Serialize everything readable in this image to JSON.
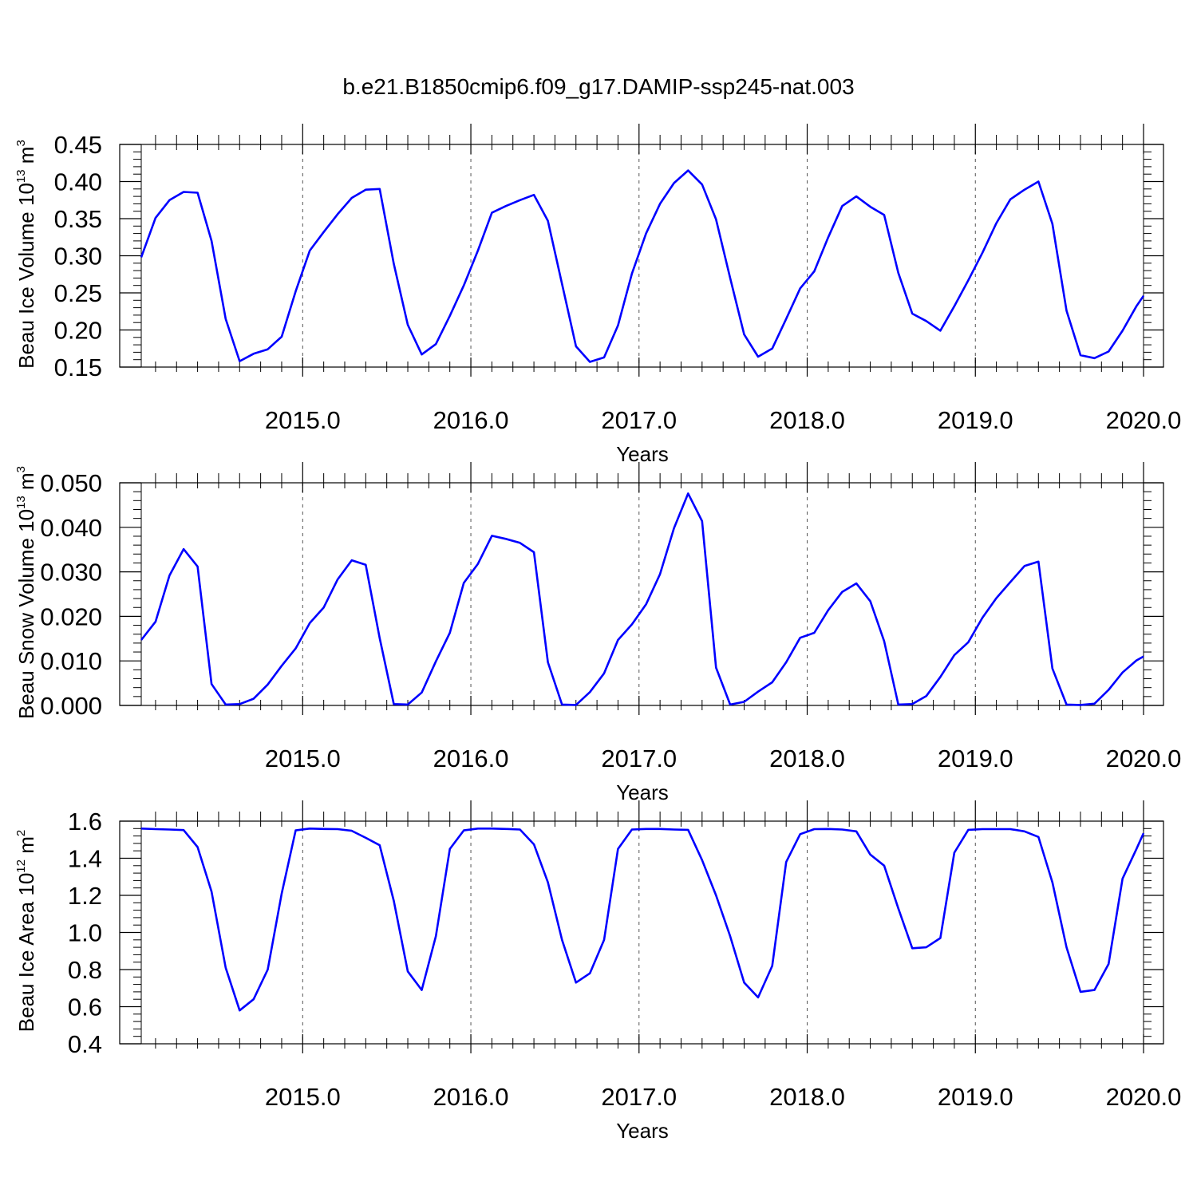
{
  "title": "b.e21.B1850cmip6.f09_g17.DAMIP-ssp245-nat.003",
  "line_color": "#0000ff",
  "chart_data": [
    {
      "type": "line",
      "title": "",
      "ylabel": "Beau Ice Volume",
      "ylabel_unit": "10",
      "ylabel_unit_exp": "13",
      "ylabel_unit_var": "m",
      "ylabel_unit_var_exp": "3",
      "xlabel": "Years",
      "xlim": [
        2014.04,
        2020.0
      ],
      "ylim": [
        0.15,
        0.45
      ],
      "yticks": [
        "0.15",
        "0.20",
        "0.25",
        "0.30",
        "0.35",
        "0.40",
        "0.45"
      ],
      "xticks": [
        "2015.0",
        "2016.0",
        "2017.0",
        "2018.0",
        "2019.0",
        "2020.0"
      ],
      "grid": "vertical-dashed",
      "series": [
        {
          "x": [
            2014.04,
            2014.125,
            2014.208,
            2014.292,
            2014.375,
            2014.458,
            2014.542,
            2014.625,
            2014.708,
            2014.792,
            2014.875,
            2014.958,
            2015.042,
            2015.125,
            2015.208,
            2015.292,
            2015.375,
            2015.458,
            2015.542,
            2015.625,
            2015.708,
            2015.792,
            2015.875,
            2015.958,
            2016.042,
            2016.125,
            2016.208,
            2016.292,
            2016.375,
            2016.458,
            2016.542,
            2016.625,
            2016.708,
            2016.792,
            2016.875,
            2016.958,
            2017.042,
            2017.125,
            2017.208,
            2017.292,
            2017.375,
            2017.458,
            2017.542,
            2017.625,
            2017.708,
            2017.792,
            2017.875,
            2017.958,
            2018.042,
            2018.125,
            2018.208,
            2018.292,
            2018.375,
            2018.458,
            2018.542,
            2018.625,
            2018.708,
            2018.792,
            2018.875,
            2018.958,
            2019.042,
            2019.125,
            2019.208,
            2019.292,
            2019.375,
            2019.458,
            2019.542,
            2019.625,
            2019.708,
            2019.792,
            2019.875,
            2019.958,
            2020.0
          ],
          "y": [
            0.298,
            0.351,
            0.375,
            0.386,
            0.385,
            0.32,
            0.215,
            0.158,
            0.168,
            0.174,
            0.191,
            0.252,
            0.307,
            0.332,
            0.356,
            0.378,
            0.389,
            0.39,
            0.289,
            0.207,
            0.167,
            0.181,
            0.219,
            0.26,
            0.307,
            0.358,
            0.367,
            0.375,
            0.382,
            0.347,
            0.262,
            0.178,
            0.157,
            0.163,
            0.206,
            0.276,
            0.33,
            0.37,
            0.398,
            0.415,
            0.396,
            0.349,
            0.27,
            0.194,
            0.164,
            0.175,
            0.215,
            0.256,
            0.279,
            0.325,
            0.367,
            0.38,
            0.366,
            0.355,
            0.277,
            0.222,
            0.212,
            0.199,
            0.232,
            0.267,
            0.304,
            0.344,
            0.376,
            0.389,
            0.4,
            0.343,
            0.226,
            0.166,
            0.162,
            0.171,
            0.199,
            0.232,
            0.246
          ]
        }
      ]
    },
    {
      "type": "line",
      "title": "",
      "ylabel": "Beau Snow Volume",
      "ylabel_unit": "10",
      "ylabel_unit_exp": "13",
      "ylabel_unit_var": "m",
      "ylabel_unit_var_exp": "3",
      "xlabel": "Years",
      "xlim": [
        2014.04,
        2020.0
      ],
      "ylim": [
        0.0,
        0.05
      ],
      "yticks": [
        "0.000",
        "0.010",
        "0.020",
        "0.030",
        "0.040",
        "0.050"
      ],
      "xticks": [
        "2015.0",
        "2016.0",
        "2017.0",
        "2018.0",
        "2019.0",
        "2020.0"
      ],
      "grid": "vertical-dashed",
      "series": [
        {
          "x": [
            2014.04,
            2014.125,
            2014.208,
            2014.292,
            2014.375,
            2014.458,
            2014.542,
            2014.625,
            2014.708,
            2014.792,
            2014.875,
            2014.958,
            2015.042,
            2015.125,
            2015.208,
            2015.292,
            2015.375,
            2015.458,
            2015.542,
            2015.625,
            2015.708,
            2015.792,
            2015.875,
            2015.958,
            2016.042,
            2016.125,
            2016.208,
            2016.292,
            2016.375,
            2016.458,
            2016.542,
            2016.625,
            2016.708,
            2016.792,
            2016.875,
            2016.958,
            2017.042,
            2017.125,
            2017.208,
            2017.292,
            2017.375,
            2017.458,
            2017.542,
            2017.625,
            2017.708,
            2017.792,
            2017.875,
            2017.958,
            2018.042,
            2018.125,
            2018.208,
            2018.292,
            2018.375,
            2018.458,
            2018.542,
            2018.625,
            2018.708,
            2018.792,
            2018.875,
            2018.958,
            2019.042,
            2019.125,
            2019.208,
            2019.292,
            2019.375,
            2019.458,
            2019.542,
            2019.625,
            2019.708,
            2019.792,
            2019.875,
            2019.958,
            2020.0
          ],
          "y": [
            0.0147,
            0.0188,
            0.0292,
            0.0351,
            0.0312,
            0.0048,
            0.0002,
            0.0003,
            0.0015,
            0.0047,
            0.0089,
            0.0128,
            0.0185,
            0.022,
            0.0283,
            0.0326,
            0.0316,
            0.0151,
            0.0003,
            0.0002,
            0.0029,
            0.0099,
            0.0163,
            0.0275,
            0.0318,
            0.0381,
            0.0374,
            0.0365,
            0.0344,
            0.0097,
            0.0002,
            0.0001,
            0.003,
            0.0072,
            0.0147,
            0.0182,
            0.0227,
            0.0295,
            0.0398,
            0.0476,
            0.0414,
            0.0085,
            0.0002,
            0.0008,
            0.0031,
            0.0052,
            0.0097,
            0.0152,
            0.0163,
            0.0214,
            0.0255,
            0.0274,
            0.0234,
            0.0144,
            0.0002,
            0.0003,
            0.0021,
            0.0064,
            0.0113,
            0.0142,
            0.0197,
            0.0241,
            0.0277,
            0.0313,
            0.0323,
            0.0083,
            0.0002,
            0.0001,
            0.0004,
            0.0035,
            0.0074,
            0.0101,
            0.011
          ]
        }
      ]
    },
    {
      "type": "line",
      "title": "",
      "ylabel": "Beau Ice Area",
      "ylabel_unit": "10",
      "ylabel_unit_exp": "12",
      "ylabel_unit_var": "m",
      "ylabel_unit_var_exp": "2",
      "xlabel": "Years",
      "xlim": [
        2014.04,
        2020.0
      ],
      "ylim": [
        0.4,
        1.6
      ],
      "yticks": [
        "0.4",
        "0.6",
        "0.8",
        "1.0",
        "1.2",
        "1.4",
        "1.6"
      ],
      "xticks": [
        "2015.0",
        "2016.0",
        "2017.0",
        "2018.0",
        "2019.0",
        "2020.0"
      ],
      "grid": "vertical-dashed",
      "series": [
        {
          "x": [
            2014.04,
            2014.125,
            2014.208,
            2014.292,
            2014.375,
            2014.458,
            2014.542,
            2014.625,
            2014.708,
            2014.792,
            2014.875,
            2014.958,
            2015.042,
            2015.125,
            2015.208,
            2015.292,
            2015.375,
            2015.458,
            2015.542,
            2015.625,
            2015.708,
            2015.792,
            2015.875,
            2015.958,
            2016.042,
            2016.125,
            2016.208,
            2016.292,
            2016.375,
            2016.458,
            2016.542,
            2016.625,
            2016.708,
            2016.792,
            2016.875,
            2016.958,
            2017.042,
            2017.125,
            2017.208,
            2017.292,
            2017.375,
            2017.458,
            2017.542,
            2017.625,
            2017.708,
            2017.792,
            2017.875,
            2017.958,
            2018.042,
            2018.125,
            2018.208,
            2018.292,
            2018.375,
            2018.458,
            2018.542,
            2018.625,
            2018.708,
            2018.792,
            2018.875,
            2018.958,
            2019.042,
            2019.125,
            2019.208,
            2019.292,
            2019.375,
            2019.458,
            2019.542,
            2019.625,
            2019.708,
            2019.792,
            2019.875,
            2019.958,
            2020.0
          ],
          "y": [
            1.56,
            1.557,
            1.555,
            1.552,
            1.46,
            1.22,
            0.81,
            0.58,
            0.64,
            0.8,
            1.21,
            1.55,
            1.56,
            1.558,
            1.557,
            1.548,
            1.51,
            1.47,
            1.17,
            0.79,
            0.69,
            0.98,
            1.45,
            1.55,
            1.56,
            1.56,
            1.558,
            1.555,
            1.475,
            1.27,
            0.96,
            0.73,
            0.78,
            0.96,
            1.45,
            1.555,
            1.558,
            1.558,
            1.555,
            1.553,
            1.39,
            1.2,
            0.98,
            0.73,
            0.65,
            0.82,
            1.38,
            1.53,
            1.557,
            1.558,
            1.555,
            1.545,
            1.42,
            1.36,
            1.13,
            0.915,
            0.92,
            0.97,
            1.43,
            1.553,
            1.557,
            1.557,
            1.557,
            1.545,
            1.515,
            1.27,
            0.92,
            0.68,
            0.69,
            0.83,
            1.29,
            1.45,
            1.535
          ]
        }
      ]
    }
  ]
}
